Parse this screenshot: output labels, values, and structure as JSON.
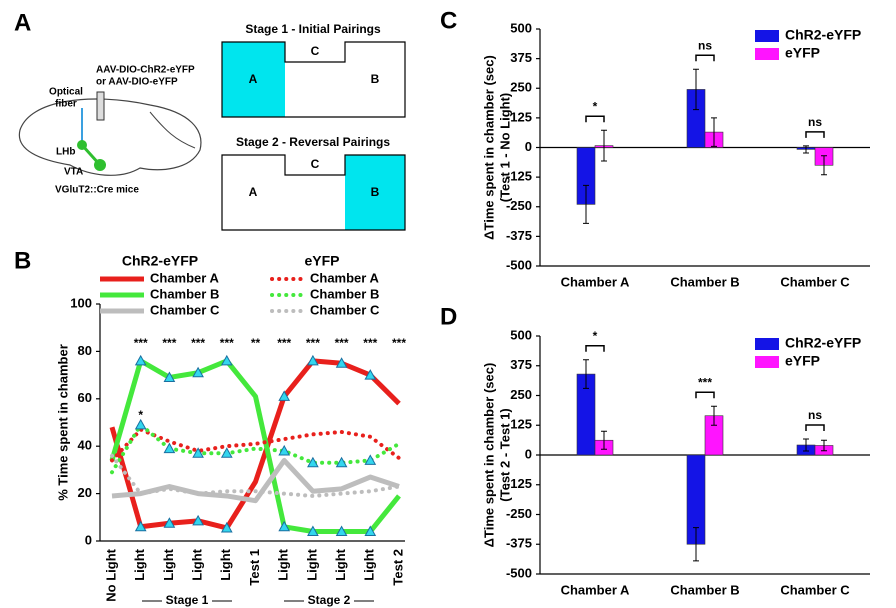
{
  "panel_a": {
    "panel": "A",
    "injection": [
      "AAV-DIO-ChR2-eYFP",
      "or AAV-DIO-eYFP"
    ],
    "fiber": [
      "Optical",
      "fiber"
    ],
    "lhb": "LHb",
    "vta": "VTA",
    "mice": "VGluT2::Cre mice",
    "stage1": {
      "title": "Stage 1 - Initial Pairings",
      "a": "A",
      "c": "C",
      "b": "B"
    },
    "stage2": {
      "title": "Stage 2 - Reversal Pairings",
      "a": "A",
      "c": "C",
      "b": "B"
    }
  },
  "chart_data": [
    {
      "type": "line",
      "panel": "B",
      "ylabel": "% Time spent in chamber",
      "categories": [
        "No Light",
        "Light",
        "Light",
        "Light",
        "Light",
        "Test 1",
        "Light",
        "Light",
        "Light",
        "Light",
        "Test 2"
      ],
      "stages": [
        "Stage 1",
        "Stage 2"
      ],
      "ylim": [
        0,
        100
      ],
      "yticks": [
        0,
        20,
        40,
        60,
        80,
        100
      ],
      "significance": [
        null,
        "***",
        "***",
        "***",
        "***",
        "**",
        "***",
        "***",
        "***",
        "***",
        "***"
      ],
      "significance_2": [
        null,
        "*",
        null,
        null,
        null,
        null,
        null,
        null,
        null,
        null,
        null
      ],
      "series_groups": [
        {
          "name": "ChR2-eYFP",
          "style": "solid",
          "series": [
            {
              "name": "Chamber A",
              "color": "#e8201c",
              "marker": "triangle",
              "values": [
                48,
                6,
                7.5,
                8.5,
                5.5,
                25,
                61,
                76,
                75,
                70,
                58
              ]
            },
            {
              "name": "Chamber B",
              "color": "#44e83c",
              "marker": "triangle",
              "values": [
                34,
                76,
                69,
                71,
                76,
                61,
                6,
                4,
                4,
                4,
                19
              ]
            },
            {
              "name": "Chamber C",
              "color": "#bdbdbd",
              "values": [
                19,
                20,
                23,
                20,
                19,
                17,
                34,
                21,
                22,
                27,
                23
              ]
            }
          ]
        },
        {
          "name": "eYFP",
          "style": "dotted",
          "series": [
            {
              "name": "Chamber A",
              "color": "#e8201c",
              "values": [
                34,
                47,
                42,
                38,
                40,
                41,
                43,
                45,
                46,
                44,
                35
              ]
            },
            {
              "name": "Chamber B",
              "color": "#44e83c",
              "marker": "triangle",
              "values": [
                29,
                49,
                39,
                37,
                37,
                39,
                38,
                33,
                33,
                34,
                41
              ]
            },
            {
              "name": "Chamber C",
              "color": "#bdbdbd",
              "values": [
                36,
                20,
                22,
                20,
                21,
                21,
                20,
                19,
                20,
                21,
                23
              ]
            }
          ]
        }
      ]
    },
    {
      "type": "bar",
      "panel": "C",
      "ylabel": [
        "ΔTime spent in chamber (sec)",
        "(Test 1 - No Light)"
      ],
      "categories": [
        "Chamber A",
        "Chamber B",
        "Chamber C"
      ],
      "ylim": [
        -500,
        500
      ],
      "yticks": [
        -500,
        -375,
        -250,
        -125,
        0,
        125,
        250,
        375,
        500
      ],
      "significance": [
        "*",
        "ns",
        "ns"
      ],
      "series": [
        {
          "name": "ChR2-eYFP",
          "color": "#1414e6",
          "values": [
            -240,
            245,
            -8
          ],
          "errors": [
            80,
            85,
            15
          ]
        },
        {
          "name": "eYFP",
          "color": "#ff14ff",
          "values": [
            8,
            65,
            -75
          ],
          "errors": [
            65,
            60,
            40
          ]
        }
      ]
    },
    {
      "type": "bar",
      "panel": "D",
      "ylabel": [
        "ΔTime spent in chamber (sec)",
        "(Test 2 - Test 1)"
      ],
      "categories": [
        "Chamber A",
        "Chamber B",
        "Chamber C"
      ],
      "ylim": [
        -500,
        500
      ],
      "yticks": [
        -500,
        -375,
        -250,
        -125,
        0,
        125,
        250,
        375,
        500
      ],
      "significance": [
        "*",
        "***",
        "ns"
      ],
      "series": [
        {
          "name": "ChR2-eYFP",
          "color": "#1414e6",
          "values": [
            340,
            -375,
            42
          ],
          "errors": [
            60,
            70,
            25
          ]
        },
        {
          "name": "eYFP",
          "color": "#ff14ff",
          "values": [
            62,
            165,
            40
          ],
          "errors": [
            38,
            40,
            22
          ]
        }
      ]
    }
  ]
}
